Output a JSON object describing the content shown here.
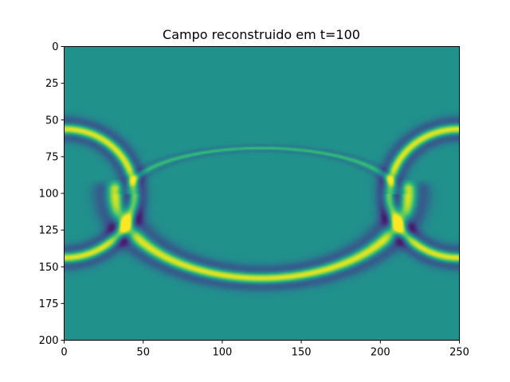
{
  "chart_data": {
    "type": "heatmap",
    "title": "Campo reconstruido em t=100",
    "xlabel": "",
    "ylabel": "",
    "xlim": [
      0,
      250
    ],
    "ylim": [
      200,
      0
    ],
    "x_ticks": [
      "0",
      "50",
      "100",
      "150",
      "200",
      "250"
    ],
    "y_ticks": [
      "0",
      "25",
      "50",
      "75",
      "100",
      "125",
      "150",
      "175",
      "200"
    ],
    "grid_shape": [
      201,
      251
    ],
    "colormap": "viridis",
    "background_color": "#21918c",
    "features": [
      {
        "name": "lower-arc",
        "center": [
          125,
          100
        ],
        "radius_x": 88,
        "radius_y": 55,
        "peak_color": "#fde725",
        "trough_color": "#3b528b"
      },
      {
        "name": "upper-arc",
        "center": [
          125,
          100
        ],
        "radius_x": 85,
        "radius_y": 31,
        "peak_color": "#5ec962"
      },
      {
        "name": "left-wavefront",
        "center": [
          0,
          100
        ],
        "radius": 41,
        "peak_color": "#fde725",
        "trough_color": "#3b528b"
      },
      {
        "name": "right-wavefront",
        "center": [
          250,
          100
        ],
        "radius": 41,
        "peak_color": "#fde725",
        "trough_color": "#3b528b"
      }
    ]
  }
}
